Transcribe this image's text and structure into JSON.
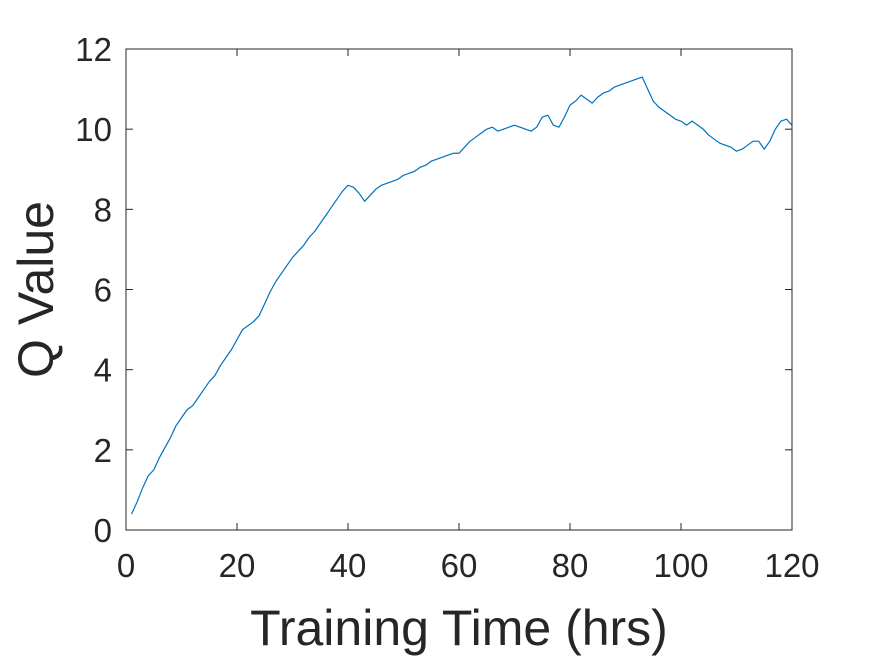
{
  "chart_data": {
    "type": "line",
    "title": "",
    "xlabel": "Training Time (hrs)",
    "ylabel": "Q Value",
    "xlim": [
      0,
      120
    ],
    "ylim": [
      0,
      12
    ],
    "xticks": [
      0,
      20,
      40,
      60,
      80,
      100,
      120
    ],
    "yticks": [
      0,
      2,
      4,
      6,
      8,
      10,
      12
    ],
    "xtick_labels": [
      "0",
      "20",
      "40",
      "60",
      "80",
      "100",
      "120"
    ],
    "ytick_labels": [
      "0",
      "2",
      "4",
      "6",
      "8",
      "10",
      "12"
    ],
    "grid": false,
    "box": true,
    "series": [
      {
        "color": "#0072BD",
        "x": [
          1,
          2,
          3,
          4,
          5,
          6,
          7,
          8,
          9,
          10,
          11,
          12,
          13,
          14,
          15,
          16,
          17,
          18,
          19,
          20,
          21,
          22,
          23,
          24,
          25,
          26,
          27,
          28,
          29,
          30,
          31,
          32,
          33,
          34,
          35,
          36,
          37,
          38,
          39,
          40,
          41,
          42,
          43,
          44,
          45,
          46,
          47,
          48,
          49,
          50,
          51,
          52,
          53,
          54,
          55,
          56,
          57,
          58,
          59,
          60,
          61,
          62,
          63,
          64,
          65,
          66,
          67,
          68,
          69,
          70,
          71,
          72,
          73,
          74,
          75,
          76,
          77,
          78,
          79,
          80,
          81,
          82,
          83,
          84,
          85,
          86,
          87,
          88,
          89,
          90,
          91,
          92,
          93,
          94,
          95,
          96,
          97,
          98,
          99,
          100,
          101,
          102,
          103,
          104,
          105,
          106,
          107,
          108,
          109,
          110,
          111,
          112,
          113,
          114,
          115,
          116,
          117,
          118,
          119,
          120
        ],
        "y": [
          0.4,
          0.7,
          1.05,
          1.35,
          1.5,
          1.8,
          2.05,
          2.3,
          2.6,
          2.8,
          3.0,
          3.1,
          3.3,
          3.5,
          3.7,
          3.85,
          4.1,
          4.3,
          4.5,
          4.75,
          5.0,
          5.1,
          5.2,
          5.35,
          5.65,
          5.95,
          6.2,
          6.4,
          6.6,
          6.8,
          6.95,
          7.1,
          7.3,
          7.45,
          7.65,
          7.85,
          8.05,
          8.25,
          8.45,
          8.6,
          8.55,
          8.4,
          8.2,
          8.35,
          8.5,
          8.6,
          8.65,
          8.7,
          8.75,
          8.85,
          8.9,
          8.95,
          9.05,
          9.1,
          9.2,
          9.25,
          9.3,
          9.35,
          9.4,
          9.4,
          9.55,
          9.7,
          9.8,
          9.9,
          10.0,
          10.05,
          9.95,
          10.0,
          10.05,
          10.1,
          10.05,
          10.0,
          9.95,
          10.05,
          10.3,
          10.35,
          10.1,
          10.05,
          10.3,
          10.6,
          10.7,
          10.85,
          10.75,
          10.65,
          10.8,
          10.9,
          10.95,
          11.05,
          11.1,
          11.15,
          11.2,
          11.25,
          11.3,
          11.0,
          10.7,
          10.55,
          10.45,
          10.35,
          10.25,
          10.2,
          10.1,
          10.2,
          10.1,
          10.0,
          9.85,
          9.75,
          9.65,
          9.6,
          9.55,
          9.45,
          9.5,
          9.6,
          9.7,
          9.7,
          9.5,
          9.7,
          10.0,
          10.2,
          10.25,
          10.1
        ]
      }
    ]
  }
}
